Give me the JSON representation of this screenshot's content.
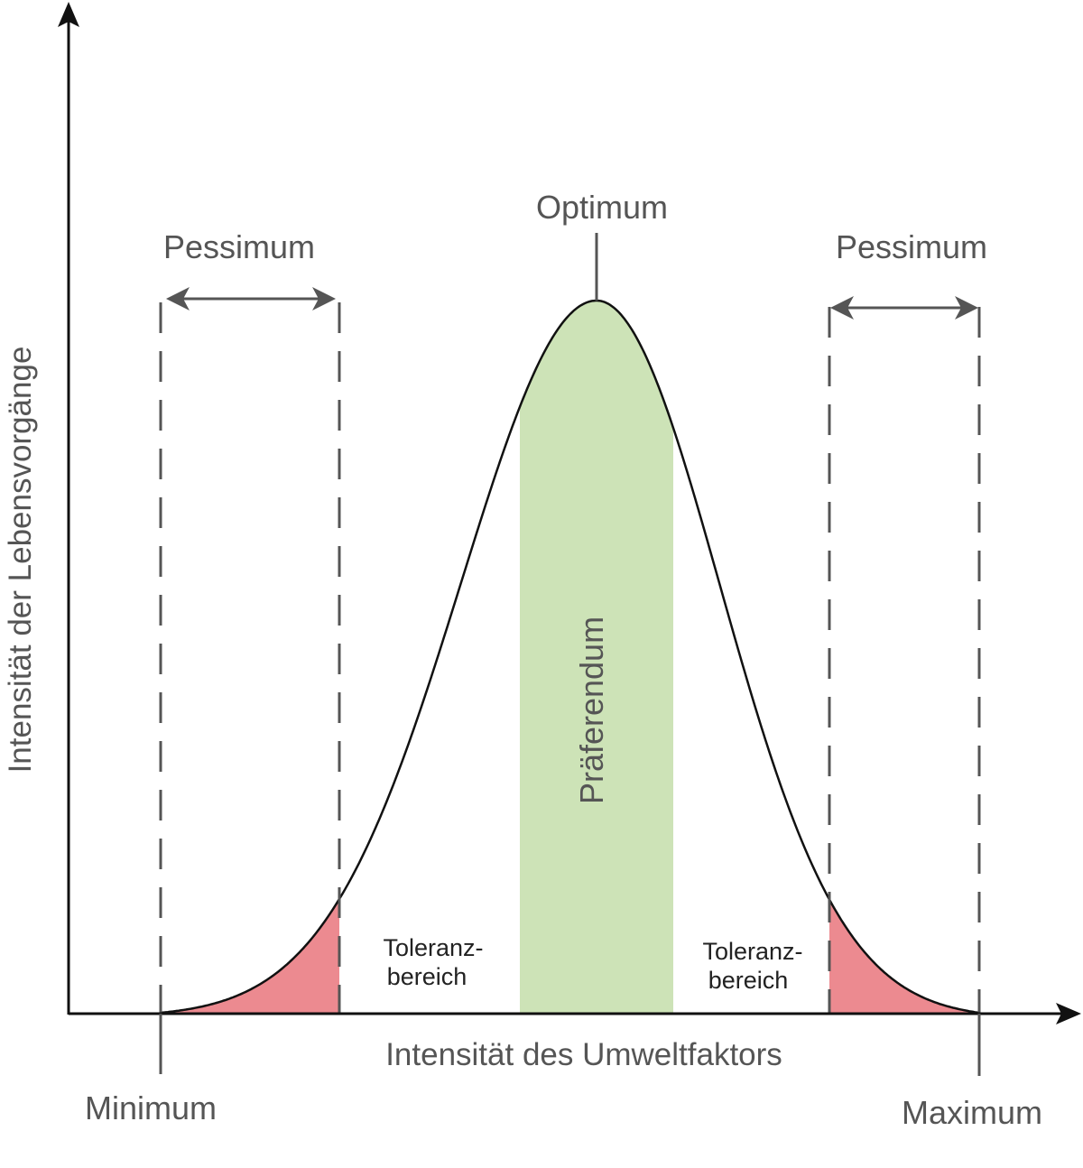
{
  "labels": {
    "optimum": "Optimum",
    "pessimum_left": "Pessimum",
    "pessimum_right": "Pessimum",
    "preferendum": "Präferendum",
    "tolerance_left_line1": "Toleranz-",
    "tolerance_left_line2": "bereich",
    "tolerance_right_line1": "Toleranz-",
    "tolerance_right_line2": "bereich",
    "x_axis": "Intensität des Umweltfaktors",
    "y_axis": "Intensität der Lebensvorgänge",
    "minimum": "Minimum",
    "maximum": "Maximum"
  },
  "colors": {
    "preferendum_fill": "#cde3b7",
    "pessimum_fill": "#ec8a90",
    "curve": "#111111",
    "text": "#555555"
  }
}
